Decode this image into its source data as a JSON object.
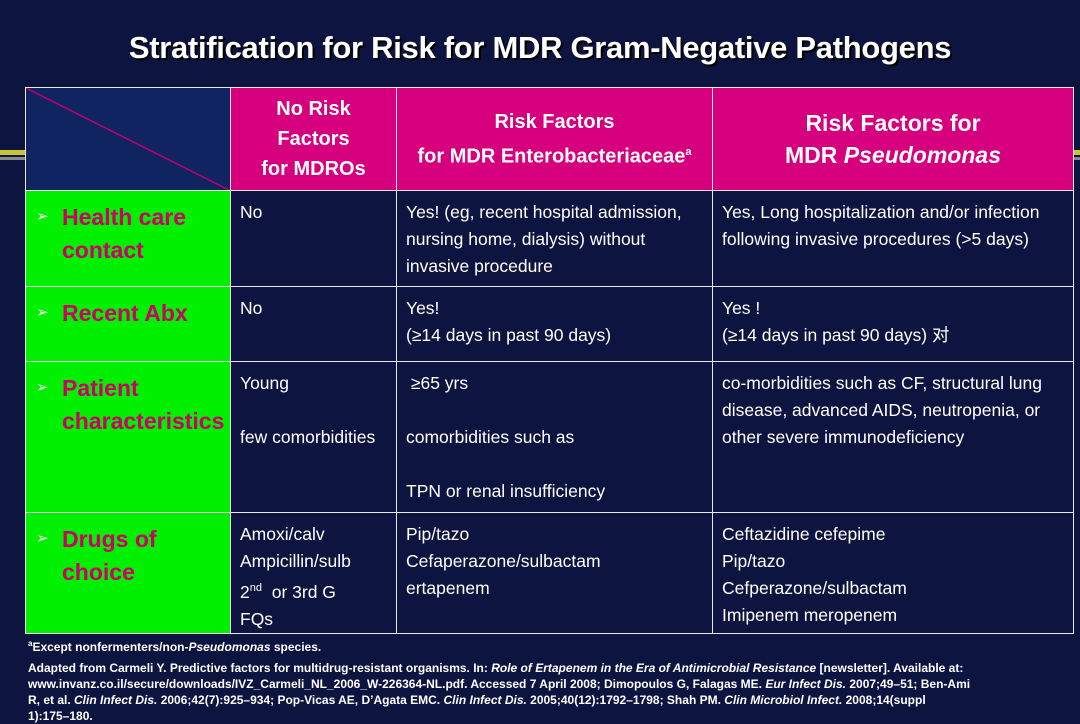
{
  "title": "Stratification for Risk for MDR Gram-Negative Pathogens",
  "header": {
    "col1": [
      "No Risk",
      "Factors",
      "for MDROs"
    ],
    "col2": [
      "Risk Factors",
      "for MDR Enterobacteriaceae"
    ],
    "col2_sup": "a",
    "col3": [
      "Risk Factors for",
      "MDR "
    ],
    "col3_italic": "Pseudomonas"
  },
  "rows": [
    {
      "label": [
        "Health care",
        "contact"
      ],
      "c1": [
        "No"
      ],
      "c2": [
        "Yes! (eg, recent hospital admission,",
        "nursing home, dialysis) without",
        "invasive procedure"
      ],
      "c3": [
        "Yes, Long hospitalization and/or infection",
        "following invasive procedures (>5 days)"
      ]
    },
    {
      "label": [
        "Recent Abx"
      ],
      "c1": [
        "No"
      ],
      "c2": [
        "Yes!",
        "(≥14 days in past 90 days)"
      ],
      "c3": [
        "Yes !",
        "(≥14 days in past 90 days) 对"
      ]
    },
    {
      "label": [
        "Patient",
        "characteristics"
      ],
      "c1": [
        "Young",
        "",
        "few comorbidities"
      ],
      "c2": [
        " ≥65 yrs",
        "",
        "comorbidities such as",
        "",
        "TPN or renal insufficiency"
      ],
      "c3": [
        "co-morbidities such as CF, structural lung",
        "disease, advanced AIDS, neutropenia, or",
        "other severe immunodeficiency"
      ]
    },
    {
      "label": [
        "Drugs of",
        "choice"
      ],
      "c1": [
        "Amoxi/calv",
        "Ampicillin/sulb",
        "2nd  or 3rd G",
        "FQs"
      ],
      "c2": [
        "Pip/tazo",
        "Cefaperazone/sulbactam",
        "ertapenem"
      ],
      "c3": [
        "Ceftazidine cefepime",
        "Pip/tazo",
        "Cefperazone/sulbactam",
        "Imipenem meropenem"
      ]
    }
  ],
  "footer": {
    "footnote_sup": "a",
    "footnote_pre": "Except nonfermenters/non-",
    "footnote_italic": "Pseudomonas",
    "footnote_post": " species.",
    "citation_lines": [
      "Adapted from Carmeli Y. Predictive factors for multidrug-resistant organisms. In: Role of Ertapenem in the Era of Antimicrobial Resistance [newsletter]. Available at:",
      "www.invanz.co.il/secure/downloads/IVZ_Carmeli_NL_2006_W-226364-NL.pdf. Accessed 7 April 2008; Dimopoulos G, Falagas ME. Eur Infect Dis. 2007;49–51; Ben-Ami",
      "R, et al. Clin Infect Dis. 2006;42(7):925–934;  Pop-Vicas AE, D’Agata EMC. Clin Infect Dis. 2005;40(12):1792–1798; Shah PM. Clin Microbiol Infect. 2008;14(suppl",
      "1):175–180."
    ]
  },
  "colors": {
    "background": "#0e1440",
    "header_magenta": "#d6007e",
    "label_green": "#00f000",
    "label_text": "#cc0066",
    "accent_band": "#c8c438"
  }
}
